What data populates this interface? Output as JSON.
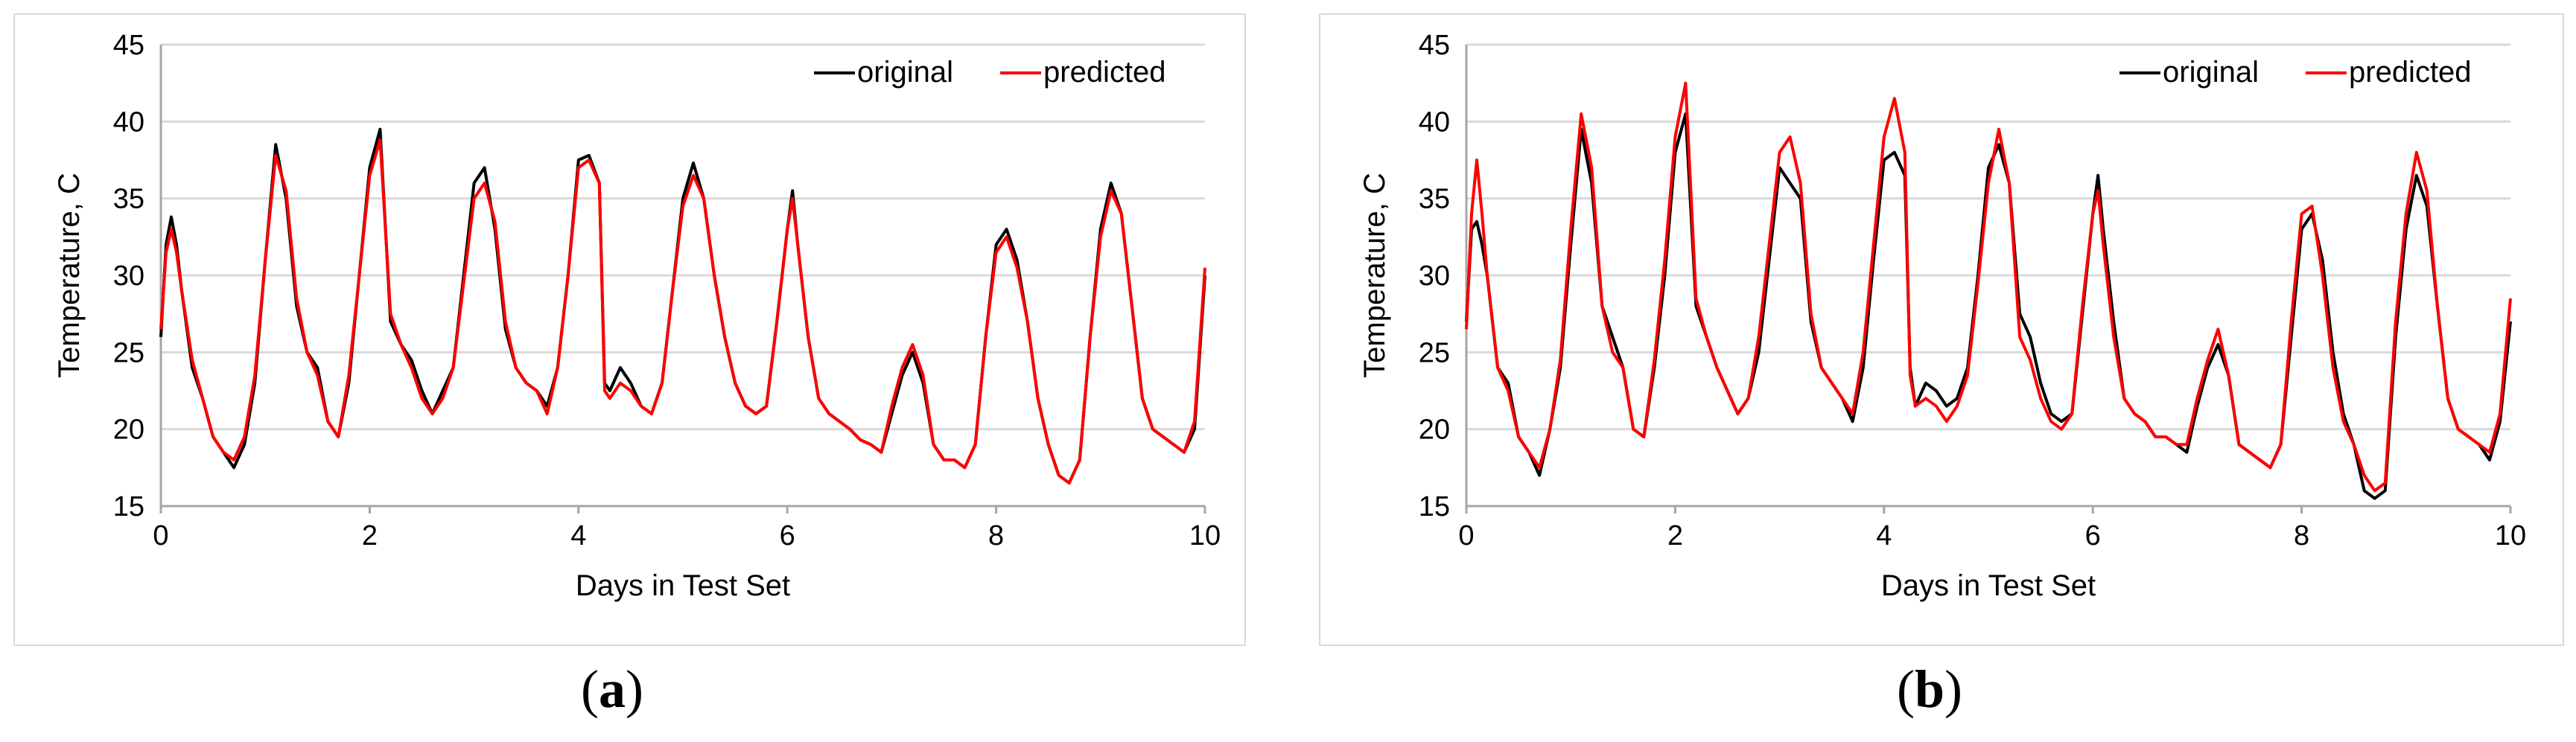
{
  "chart_data": [
    {
      "panel": "(a)",
      "type": "line",
      "xlabel": "Days in Test Set",
      "ylabel": "Temperature, C",
      "xlim": [
        0,
        10
      ],
      "ylim": [
        15,
        45
      ],
      "xticks": [
        0,
        2,
        4,
        6,
        8,
        10
      ],
      "yticks": [
        15,
        20,
        25,
        30,
        35,
        40,
        45
      ],
      "grid": "horizontal",
      "legend_position": "top-right",
      "series": [
        {
          "name": "original",
          "color": "#000000",
          "x": [
            0,
            0.05,
            0.1,
            0.15,
            0.2,
            0.3,
            0.4,
            0.5,
            0.6,
            0.7,
            0.8,
            0.9,
            1.0,
            1.1,
            1.2,
            1.3,
            1.4,
            1.5,
            1.6,
            1.7,
            1.8,
            1.9,
            2.0,
            2.1,
            2.2,
            2.3,
            2.4,
            2.5,
            2.6,
            2.7,
            2.8,
            2.9,
            3.0,
            3.1,
            3.2,
            3.3,
            3.4,
            3.5,
            3.6,
            3.7,
            3.8,
            3.9,
            4.0,
            4.1,
            4.2,
            4.25,
            4.3,
            4.4,
            4.5,
            4.6,
            4.7,
            4.8,
            4.9,
            5.0,
            5.1,
            5.2,
            5.3,
            5.4,
            5.5,
            5.6,
            5.7,
            5.8,
            5.9,
            6.0,
            6.05,
            6.1,
            6.2,
            6.3,
            6.4,
            6.5,
            6.6,
            6.7,
            6.8,
            6.9,
            7.0,
            7.1,
            7.2,
            7.3,
            7.4,
            7.5,
            7.6,
            7.7,
            7.8,
            7.9,
            8.0,
            8.1,
            8.2,
            8.3,
            8.4,
            8.5,
            8.6,
            8.7,
            8.8,
            8.9,
            9.0,
            9.1,
            9.2,
            9.3,
            9.4,
            9.5,
            9.6,
            9.7,
            9.8,
            9.9,
            10.0
          ],
          "y": [
            26,
            32,
            33.8,
            32,
            29,
            24,
            22,
            19.5,
            18.5,
            17.5,
            19,
            23,
            31,
            38.5,
            35,
            28,
            25,
            24,
            20.5,
            19.5,
            23,
            30,
            37,
            39.5,
            27,
            25.5,
            24.5,
            22.5,
            21,
            22.5,
            24,
            30,
            36,
            37,
            33,
            26.5,
            24,
            23,
            22.5,
            21.5,
            24,
            30,
            37.5,
            37.8,
            36,
            23,
            22.5,
            24,
            23,
            21.5,
            21,
            23,
            29,
            35,
            37.3,
            35,
            30,
            26,
            23,
            21.5,
            21,
            21.5,
            27,
            33,
            35.5,
            32,
            26,
            22,
            21,
            20.5,
            20,
            19.3,
            19,
            18.5,
            21,
            23.5,
            25,
            23,
            19,
            18,
            18,
            17.5,
            19,
            26,
            32,
            33,
            31,
            27,
            22,
            19,
            17,
            16.5,
            18,
            26,
            33,
            36,
            34,
            28,
            22,
            20,
            19.5,
            19,
            18.5,
            20,
            30
          ]
        },
        {
          "name": "predicted",
          "color": "#ff0000",
          "x": [
            0,
            0.05,
            0.1,
            0.15,
            0.2,
            0.3,
            0.4,
            0.5,
            0.6,
            0.7,
            0.8,
            0.9,
            1.0,
            1.1,
            1.2,
            1.3,
            1.4,
            1.5,
            1.6,
            1.7,
            1.8,
            1.9,
            2.0,
            2.1,
            2.2,
            2.3,
            2.4,
            2.5,
            2.6,
            2.7,
            2.8,
            2.9,
            3.0,
            3.1,
            3.2,
            3.3,
            3.4,
            3.5,
            3.6,
            3.7,
            3.8,
            3.9,
            4.0,
            4.1,
            4.2,
            4.25,
            4.3,
            4.4,
            4.5,
            4.6,
            4.7,
            4.8,
            4.9,
            5.0,
            5.1,
            5.2,
            5.3,
            5.4,
            5.5,
            5.6,
            5.7,
            5.8,
            5.9,
            6.0,
            6.05,
            6.1,
            6.2,
            6.3,
            6.4,
            6.5,
            6.6,
            6.7,
            6.8,
            6.9,
            7.0,
            7.1,
            7.2,
            7.3,
            7.4,
            7.5,
            7.6,
            7.7,
            7.8,
            7.9,
            8.0,
            8.1,
            8.2,
            8.3,
            8.4,
            8.5,
            8.6,
            8.7,
            8.8,
            8.9,
            9.0,
            9.1,
            9.2,
            9.3,
            9.4,
            9.5,
            9.6,
            9.7,
            9.8,
            9.9,
            10.0
          ],
          "y": [
            26.5,
            31.5,
            33,
            31.5,
            29,
            24.5,
            22,
            19.5,
            18.5,
            18,
            19.5,
            23.5,
            31,
            37.8,
            35.5,
            28.5,
            25,
            23.5,
            20.5,
            19.5,
            23.5,
            30,
            36.5,
            38.8,
            27.5,
            25.5,
            24,
            22,
            21,
            22,
            24,
            29.5,
            35,
            36,
            33.5,
            27,
            24,
            23,
            22.5,
            21,
            24,
            30,
            37,
            37.5,
            36,
            22.5,
            22,
            23,
            22.5,
            21.5,
            21,
            23,
            29,
            34.5,
            36.5,
            35,
            30,
            26,
            23,
            21.5,
            21,
            21.5,
            27,
            33,
            35,
            32,
            26,
            22,
            21,
            20.5,
            20,
            19.3,
            19,
            18.5,
            21.5,
            24,
            25.5,
            23.5,
            19,
            18,
            18,
            17.5,
            19,
            26,
            31.5,
            32.5,
            30.5,
            27,
            22,
            19,
            17,
            16.5,
            18,
            26,
            32.5,
            35.5,
            34,
            28,
            22,
            20,
            19.5,
            19,
            18.5,
            20.5,
            30.5
          ]
        }
      ]
    },
    {
      "panel": "(b)",
      "type": "line",
      "xlabel": "Days in Test Set",
      "ylabel": "Temperature, C",
      "xlim": [
        0,
        10
      ],
      "ylim": [
        15,
        45
      ],
      "xticks": [
        0,
        2,
        4,
        6,
        8,
        10
      ],
      "yticks": [
        15,
        20,
        25,
        30,
        35,
        40,
        45
      ],
      "grid": "horizontal",
      "legend_position": "top-right",
      "series": [
        {
          "name": "original",
          "color": "#000000",
          "x": [
            0,
            0.05,
            0.1,
            0.15,
            0.2,
            0.3,
            0.4,
            0.5,
            0.6,
            0.7,
            0.8,
            0.9,
            1.0,
            1.1,
            1.2,
            1.3,
            1.4,
            1.5,
            1.6,
            1.7,
            1.8,
            1.9,
            2.0,
            2.1,
            2.2,
            2.3,
            2.4,
            2.5,
            2.6,
            2.7,
            2.8,
            2.9,
            3.0,
            3.1,
            3.2,
            3.3,
            3.4,
            3.5,
            3.6,
            3.7,
            3.8,
            3.9,
            4.0,
            4.1,
            4.2,
            4.25,
            4.3,
            4.4,
            4.5,
            4.6,
            4.7,
            4.8,
            4.9,
            5.0,
            5.1,
            5.2,
            5.3,
            5.4,
            5.5,
            5.6,
            5.7,
            5.8,
            5.9,
            6.0,
            6.05,
            6.1,
            6.2,
            6.3,
            6.4,
            6.5,
            6.6,
            6.7,
            6.8,
            6.9,
            7.0,
            7.1,
            7.2,
            7.3,
            7.4,
            7.5,
            7.6,
            7.7,
            7.8,
            7.9,
            8.0,
            8.1,
            8.2,
            8.3,
            8.4,
            8.5,
            8.6,
            8.7,
            8.8,
            8.9,
            9.0,
            9.1,
            9.2,
            9.3,
            9.4,
            9.5,
            9.6,
            9.7,
            9.8,
            9.9,
            10.0
          ],
          "y": [
            27,
            33,
            33.5,
            32,
            30,
            24,
            23,
            19.5,
            18.5,
            17,
            20,
            24,
            32,
            39.5,
            36,
            28,
            26,
            24,
            20,
            19.5,
            24,
            30,
            38,
            40.5,
            28,
            26,
            24,
            22.5,
            21,
            22,
            25,
            31,
            37,
            36,
            35,
            27,
            24,
            23,
            22,
            20.5,
            24,
            31,
            37.5,
            38,
            36.5,
            24,
            21.5,
            23,
            22.5,
            21.5,
            22,
            24,
            30,
            37,
            38.5,
            36,
            27.5,
            26,
            23,
            21,
            20.5,
            21,
            27.5,
            34,
            36.5,
            33,
            27,
            22,
            21,
            20.5,
            19.5,
            19.5,
            19,
            18.5,
            21.5,
            24,
            25.5,
            23.5,
            19,
            18.5,
            18,
            17.5,
            19,
            26,
            33,
            34,
            31,
            25,
            21,
            19,
            16,
            15.5,
            16,
            26,
            33,
            36.5,
            34.5,
            28,
            22,
            20,
            19.5,
            19,
            18,
            20.5,
            27
          ]
        },
        {
          "name": "predicted",
          "color": "#ff0000",
          "x": [
            0,
            0.05,
            0.1,
            0.15,
            0.2,
            0.3,
            0.4,
            0.5,
            0.6,
            0.7,
            0.8,
            0.9,
            1.0,
            1.1,
            1.2,
            1.3,
            1.4,
            1.5,
            1.6,
            1.7,
            1.8,
            1.9,
            2.0,
            2.1,
            2.2,
            2.3,
            2.4,
            2.5,
            2.6,
            2.7,
            2.8,
            2.9,
            3.0,
            3.1,
            3.2,
            3.3,
            3.4,
            3.5,
            3.6,
            3.7,
            3.8,
            3.9,
            4.0,
            4.1,
            4.2,
            4.25,
            4.3,
            4.4,
            4.5,
            4.6,
            4.7,
            4.8,
            4.9,
            5.0,
            5.1,
            5.2,
            5.3,
            5.4,
            5.5,
            5.6,
            5.7,
            5.8,
            5.9,
            6.0,
            6.05,
            6.1,
            6.2,
            6.3,
            6.4,
            6.5,
            6.6,
            6.7,
            6.8,
            6.9,
            7.0,
            7.1,
            7.2,
            7.3,
            7.4,
            7.5,
            7.6,
            7.7,
            7.8,
            7.9,
            8.0,
            8.1,
            8.2,
            8.3,
            8.4,
            8.5,
            8.6,
            8.7,
            8.8,
            8.9,
            9.0,
            9.1,
            9.2,
            9.3,
            9.4,
            9.5,
            9.6,
            9.7,
            9.8,
            9.9,
            10.0
          ],
          "y": [
            26.5,
            34,
            37.5,
            34,
            30,
            24,
            22.5,
            19.5,
            18.5,
            17.5,
            20,
            24.5,
            33,
            40.5,
            37,
            28,
            25,
            24,
            20,
            19.5,
            24.5,
            31,
            39,
            42.5,
            28.5,
            26,
            24,
            22.5,
            21,
            22,
            26,
            32,
            38,
            39,
            36,
            27.5,
            24,
            23,
            22,
            21,
            25,
            32,
            39,
            41.5,
            38,
            23.5,
            21.5,
            22,
            21.5,
            20.5,
            21.5,
            23.5,
            29.5,
            36,
            39.5,
            36,
            26,
            24.5,
            22,
            20.5,
            20,
            21,
            28,
            34,
            35.5,
            32,
            26,
            22,
            21,
            20.5,
            19.5,
            19.5,
            19,
            19,
            22,
            24.5,
            26.5,
            23.5,
            19,
            18.5,
            18,
            17.5,
            19,
            27,
            34,
            34.5,
            30,
            24,
            20.5,
            19,
            17,
            16,
            16.5,
            27,
            34,
            38,
            35.5,
            28,
            22,
            20,
            19.5,
            19,
            18.5,
            21,
            28.5
          ]
        }
      ]
    }
  ],
  "panels": [
    {
      "label_prefix": "(",
      "label_letter": "a",
      "label_suffix": ")"
    },
    {
      "label_prefix": "(",
      "label_letter": "b",
      "label_suffix": ")"
    }
  ]
}
